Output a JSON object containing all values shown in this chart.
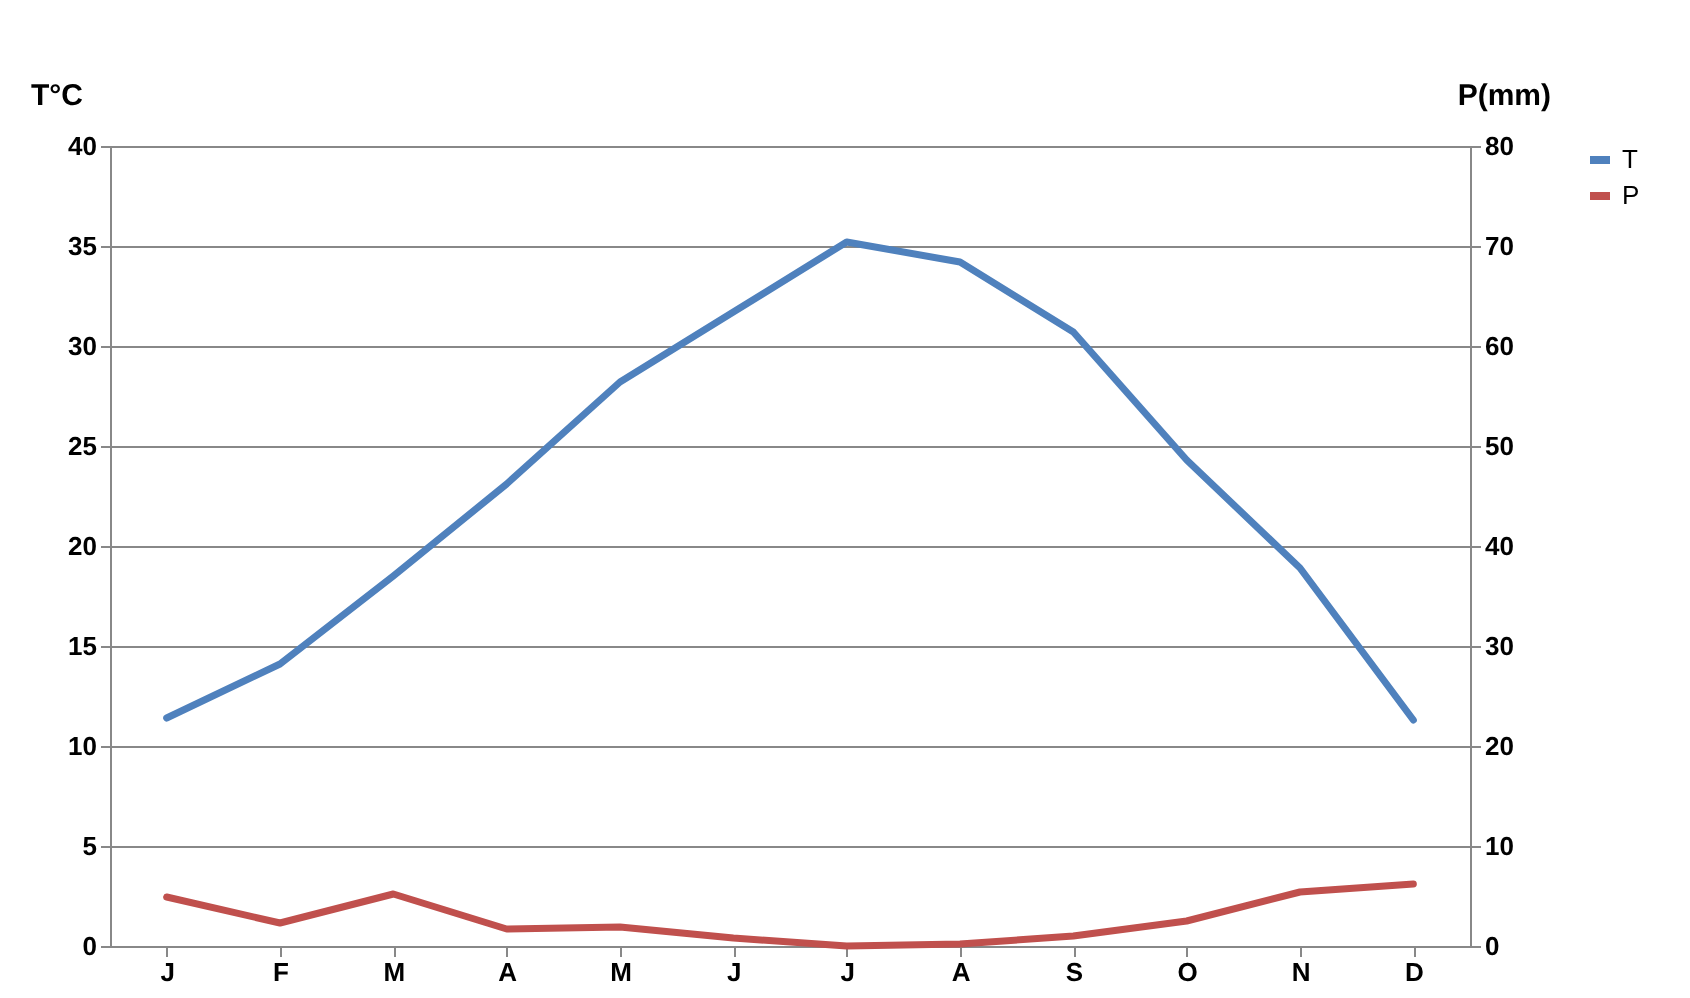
{
  "chart_data": {
    "type": "line",
    "ylabel": "T°C",
    "y2label": "P(mm)",
    "categories": [
      "J",
      "F",
      "M",
      "A",
      "M",
      "J",
      "J",
      "A",
      "S",
      "O",
      "N",
      "D"
    ],
    "series": [
      {
        "name": "T",
        "color": "#4f81bd",
        "values": [
          11.4,
          14.1,
          18.5,
          23.1,
          28.2,
          31.7,
          35.2,
          34.2,
          30.7,
          24.3,
          18.9,
          11.3
        ]
      },
      {
        "name": "P",
        "color": "#c0504d",
        "axis": "y2",
        "values": [
          4.9,
          2.3,
          5.2,
          1.7,
          1.9,
          0.8,
          0.0,
          0.2,
          1.0,
          2.5,
          5.4,
          6.2
        ]
      }
    ],
    "ylim": [
      0,
      40
    ],
    "yticks": [
      0,
      5,
      10,
      15,
      20,
      25,
      30,
      35,
      40
    ],
    "y2lim": [
      0,
      80
    ],
    "y2ticks": [
      0,
      10,
      20,
      30,
      40,
      50,
      60,
      70,
      80
    ],
    "grid": "y",
    "legend": "right",
    "line_style": "solid",
    "marker": "none"
  }
}
